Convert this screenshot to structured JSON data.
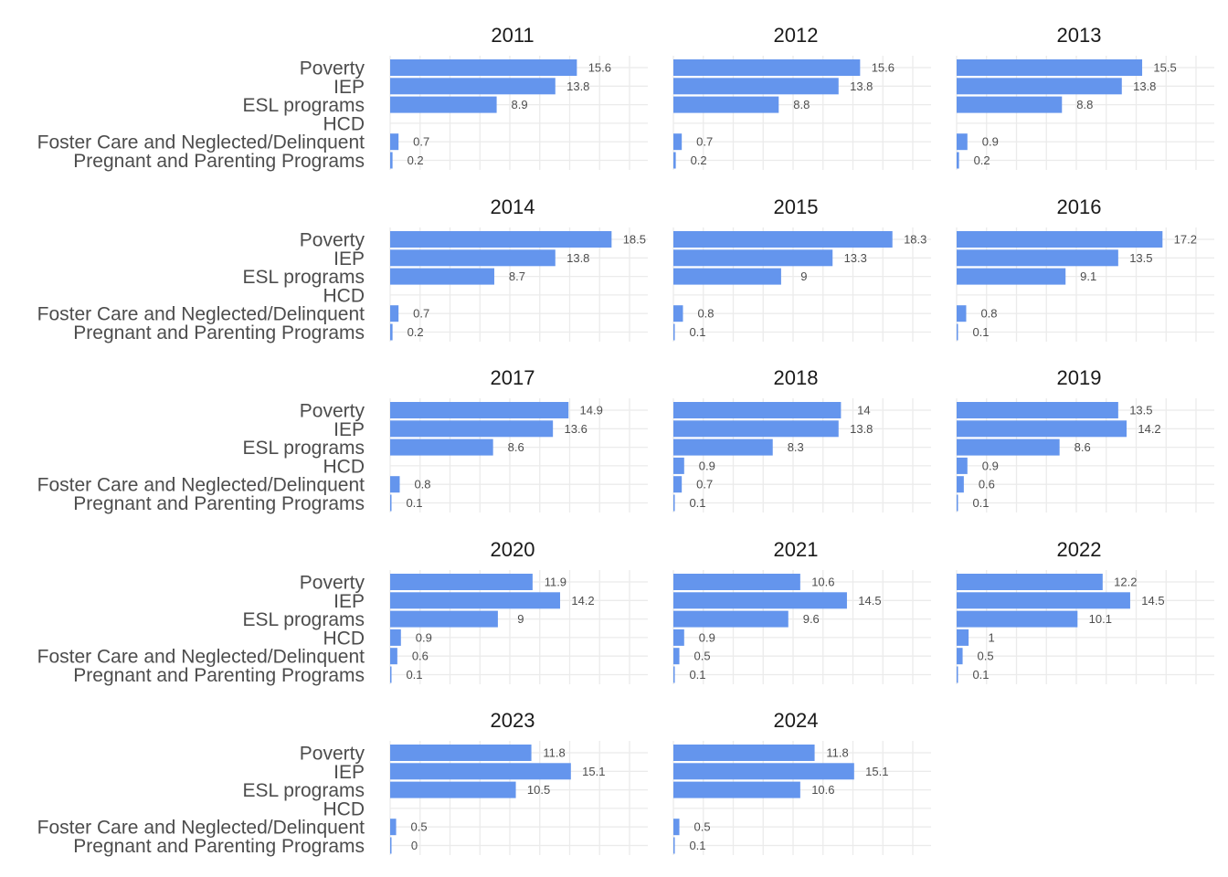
{
  "chart_data": {
    "type": "bar",
    "orientation": "horizontal",
    "faceted": true,
    "bar_color": "#6495ED",
    "grid": true,
    "categories": [
      "Poverty",
      "IEP",
      "ESL programs",
      "HCD",
      "Foster Care and Neglected/Delinquent",
      "Pregnant and Parenting Programs"
    ],
    "xlim": [
      0,
      21.5
    ],
    "panels": [
      {
        "title": "2011",
        "values": [
          15.6,
          13.8,
          8.9,
          null,
          0.7,
          0.2
        ]
      },
      {
        "title": "2012",
        "values": [
          15.6,
          13.8,
          8.8,
          null,
          0.7,
          0.2
        ]
      },
      {
        "title": "2013",
        "values": [
          15.5,
          13.8,
          8.8,
          null,
          0.9,
          0.2
        ]
      },
      {
        "title": "2014",
        "values": [
          18.5,
          13.8,
          8.7,
          null,
          0.7,
          0.2
        ]
      },
      {
        "title": "2015",
        "values": [
          18.3,
          13.3,
          9,
          null,
          0.8,
          0.1
        ]
      },
      {
        "title": "2016",
        "values": [
          17.2,
          13.5,
          9.1,
          null,
          0.8,
          0.1
        ]
      },
      {
        "title": "2017",
        "values": [
          14.9,
          13.6,
          8.6,
          null,
          0.8,
          0.1
        ]
      },
      {
        "title": "2018",
        "values": [
          14,
          13.8,
          8.3,
          0.9,
          0.7,
          0.1
        ]
      },
      {
        "title": "2019",
        "values": [
          13.5,
          14.2,
          8.6,
          0.9,
          0.6,
          0.1
        ]
      },
      {
        "title": "2020",
        "values": [
          11.9,
          14.2,
          9,
          0.9,
          0.6,
          0.1
        ]
      },
      {
        "title": "2021",
        "values": [
          10.6,
          14.5,
          9.6,
          0.9,
          0.5,
          0.1
        ]
      },
      {
        "title": "2022",
        "values": [
          12.2,
          14.5,
          10.1,
          1,
          0.5,
          0.1
        ]
      },
      {
        "title": "2023",
        "values": [
          11.8,
          15.1,
          10.5,
          null,
          0.5,
          0
        ]
      },
      {
        "title": "2024",
        "values": [
          11.8,
          15.1,
          10.6,
          null,
          0.5,
          0.1
        ]
      }
    ]
  }
}
